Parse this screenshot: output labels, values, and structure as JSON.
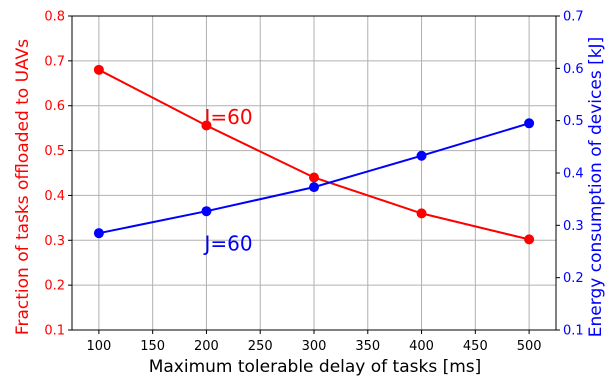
{
  "chart_data": {
    "type": "line",
    "xlabel": "Maximum tolerable delay of tasks [ms]",
    "ylabel_left": "Fraction of tasks offloaded to UAVs",
    "ylabel_right": "Energy consumption of devices [kJ]",
    "x": [
      100,
      200,
      300,
      400,
      500
    ],
    "xlim": [
      75,
      525
    ],
    "xticks": [
      100,
      150,
      200,
      250,
      300,
      350,
      400,
      450,
      500
    ],
    "ylim_left": [
      0.1,
      0.8
    ],
    "yticks_left": [
      "0.1",
      "0.2",
      "0.3",
      "0.4",
      "0.5",
      "0.6",
      "0.7",
      "0.8"
    ],
    "ylim_right": [
      0.1,
      0.7
    ],
    "yticks_right": [
      "0.1",
      "0.2",
      "0.3",
      "0.4",
      "0.5",
      "0.6",
      "0.7"
    ],
    "grid": true,
    "series": [
      {
        "axis": "left",
        "color": "#ff0000",
        "values": [
          0.68,
          0.556,
          0.44,
          0.36,
          0.302
        ],
        "annotation": "J=60",
        "annotation_at": [
          200,
          0.575
        ]
      },
      {
        "axis": "right",
        "color": "#0000ff",
        "values": [
          0.285,
          0.327,
          0.373,
          0.433,
          0.495
        ],
        "annotation": "J=60",
        "annotation_at": [
          200,
          0.265
        ]
      }
    ]
  }
}
